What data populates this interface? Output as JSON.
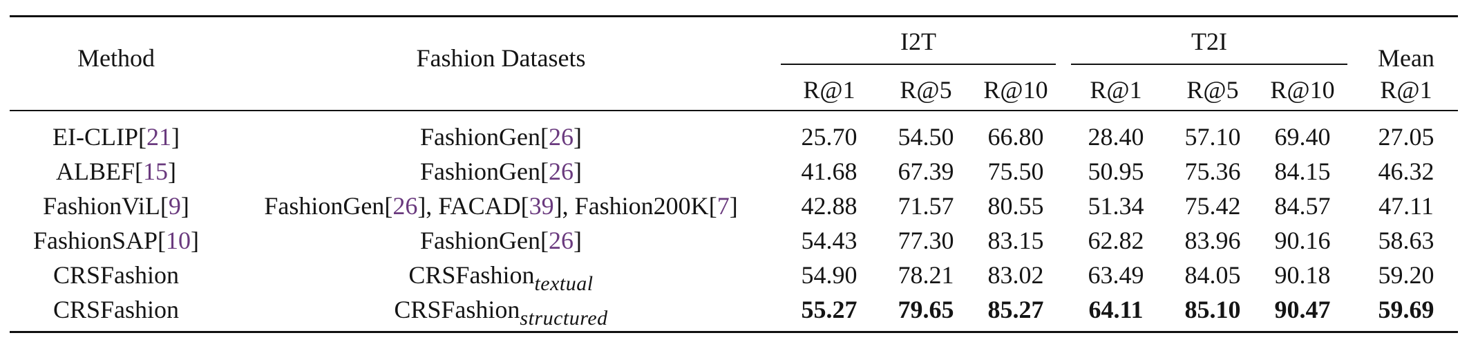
{
  "header": {
    "method": "Method",
    "datasets": "Fashion Datasets",
    "i2t": "I2T",
    "t2i": "T2I",
    "mean": "Mean",
    "mean_sub": "R@1",
    "metrics": [
      "R@1",
      "R@5",
      "R@10"
    ]
  },
  "rows": [
    {
      "method": "EI-CLIP",
      "method_cite": "21",
      "datasets": [
        {
          "name": "FashionGen",
          "cite": "26"
        }
      ],
      "values": [
        "25.70",
        "54.50",
        "66.80",
        "28.40",
        "57.10",
        "69.40",
        "27.05"
      ]
    },
    {
      "method": "ALBEF",
      "method_cite": "15",
      "datasets": [
        {
          "name": "FashionGen",
          "cite": "26"
        }
      ],
      "values": [
        "41.68",
        "67.39",
        "75.50",
        "50.95",
        "75.36",
        "84.15",
        "46.32"
      ]
    },
    {
      "method": "FashionViL",
      "method_cite": "9",
      "datasets": [
        {
          "name": "FashionGen",
          "cite": "26"
        },
        {
          "name": "FACAD",
          "cite": "39"
        },
        {
          "name": "Fashion200K",
          "cite": "7"
        }
      ],
      "values": [
        "42.88",
        "71.57",
        "80.55",
        "51.34",
        "75.42",
        "84.57",
        "47.11"
      ]
    },
    {
      "method": "FashionSAP",
      "method_cite": "10",
      "datasets": [
        {
          "name": "FashionGen",
          "cite": "26"
        }
      ],
      "values": [
        "54.43",
        "77.30",
        "83.15",
        "62.82",
        "83.96",
        "90.16",
        "58.63"
      ]
    },
    {
      "method": "CRSFashion",
      "method_cite": "",
      "dataset_main": "CRSFashion",
      "dataset_sub": "textual",
      "values": [
        "54.90",
        "78.21",
        "83.02",
        "63.49",
        "84.05",
        "90.18",
        "59.20"
      ]
    },
    {
      "method": "CRSFashion",
      "method_cite": "",
      "dataset_main": "CRSFashion",
      "dataset_sub": "structured",
      "values": [
        "55.27",
        "79.65",
        "85.27",
        "64.11",
        "85.10",
        "90.47",
        "59.69"
      ],
      "bold": true
    }
  ],
  "colors": {
    "citation": "#6a3a7e",
    "rule": "#111111"
  }
}
